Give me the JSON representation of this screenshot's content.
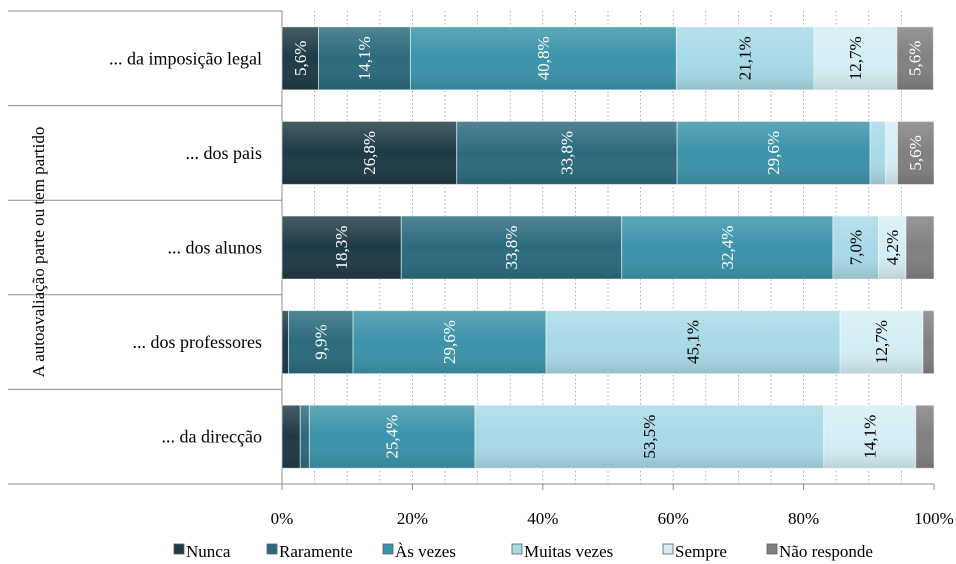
{
  "chart_data": {
    "type": "bar",
    "orientation": "horizontal",
    "stacked": true,
    "percent_stacked": true,
    "ylabel": "A autoavaliação  parte ou tem partido",
    "categories": [
      "... da imposição  legal",
      "... dos pais",
      "... dos alunos",
      "... dos professores",
      "... da direcção"
    ],
    "series": [
      {
        "name": "Nunca",
        "color": "#1e3a44",
        "values": [
          5.6,
          26.8,
          18.3,
          1.0,
          2.8
        ]
      },
      {
        "name": "Raramente",
        "color": "#2b6a7c",
        "values": [
          14.1,
          33.8,
          33.8,
          9.9,
          1.4
        ]
      },
      {
        "name": "Às vezes",
        "color": "#3b93aa",
        "values": [
          40.8,
          29.6,
          32.4,
          29.6,
          25.4
        ]
      },
      {
        "name": "Muitas vezes",
        "color": "#a8d9e7",
        "values": [
          21.1,
          2.4,
          7.0,
          45.1,
          53.5
        ]
      },
      {
        "name": "Sempre",
        "color": "#d5eef5",
        "values": [
          12.7,
          1.8,
          4.2,
          12.7,
          14.1
        ]
      },
      {
        "name": "Não responde",
        "color": "#808080",
        "values": [
          5.6,
          5.6,
          4.3,
          1.7,
          2.8
        ]
      }
    ],
    "data_labels": [
      [
        "5,6%",
        "14,1%",
        "40,8%",
        "21,1%",
        "12,7%",
        "5,6%"
      ],
      [
        "26,8%",
        "33,8%",
        "29,6%",
        "",
        "",
        "5,6%"
      ],
      [
        "18,3%",
        "33,8%",
        "32,4%",
        "7,0%",
        "4,2%",
        ""
      ],
      [
        "",
        "9,9%",
        "29,6%",
        "45,1%",
        "12,7%",
        ""
      ],
      [
        "",
        "",
        "25,4%",
        "53,5%",
        "14,1%",
        ""
      ]
    ],
    "xaxis": {
      "range": [
        0,
        100
      ],
      "ticks": [
        0,
        20,
        40,
        60,
        80,
        100
      ],
      "tick_labels": [
        "0%",
        "20%",
        "40%",
        "60%",
        "80%",
        "100%"
      ]
    },
    "grid": "vertical dotted",
    "legend": {
      "position": "bottom"
    }
  }
}
